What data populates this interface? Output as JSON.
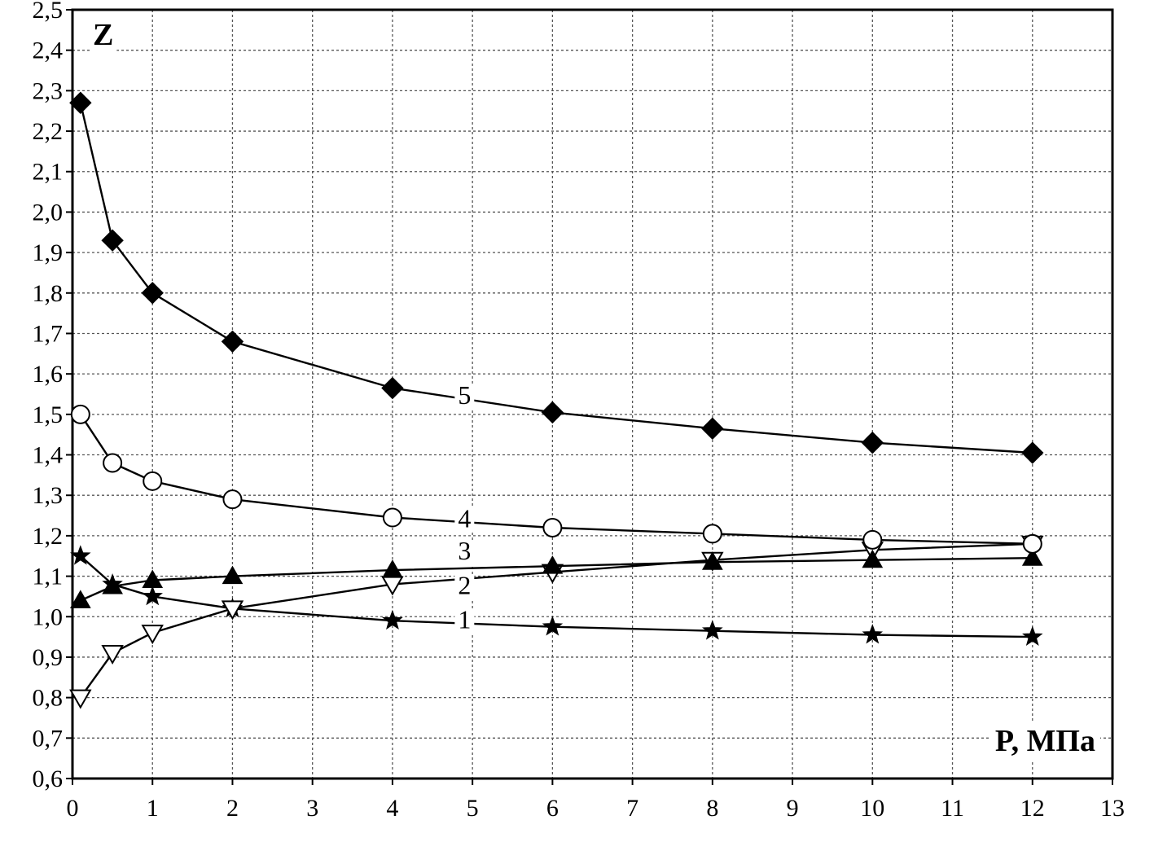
{
  "chart_data": {
    "type": "line",
    "ylabel": "Z",
    "xlabel": "P, МПа",
    "xlim": [
      0,
      13
    ],
    "ylim": [
      0.6,
      2.5
    ],
    "xticks": [
      "0",
      "1",
      "2",
      "3",
      "4",
      "5",
      "6",
      "7",
      "8",
      "9",
      "10",
      "11",
      "12",
      "13"
    ],
    "yticks": [
      "0,6",
      "0,7",
      "0,8",
      "0,9",
      "1,0",
      "1,1",
      "1,2",
      "1,3",
      "1,4",
      "1,5",
      "1,6",
      "1,7",
      "1,8",
      "1,9",
      "2,0",
      "2,1",
      "2,2",
      "2,3",
      "2,4",
      "2,5"
    ],
    "grid": true,
    "x": [
      0.1,
      0.5,
      1,
      2,
      4,
      6,
      8,
      10,
      12
    ],
    "series": [
      {
        "name": "1",
        "marker": "star",
        "values": [
          1.15,
          1.08,
          1.05,
          1.02,
          0.99,
          0.975,
          0.965,
          0.955,
          0.95
        ]
      },
      {
        "name": "2",
        "marker": "triangle-down-open",
        "values": [
          0.8,
          0.91,
          0.96,
          1.02,
          1.08,
          1.11,
          1.14,
          1.165,
          1.18
        ]
      },
      {
        "name": "3",
        "marker": "triangle-up-filled",
        "values": [
          1.04,
          1.075,
          1.09,
          1.1,
          1.115,
          1.125,
          1.135,
          1.14,
          1.145
        ]
      },
      {
        "name": "4",
        "marker": "circle-open",
        "values": [
          1.5,
          1.38,
          1.335,
          1.29,
          1.245,
          1.22,
          1.205,
          1.19,
          1.18
        ]
      },
      {
        "name": "5",
        "marker": "diamond-filled",
        "values": [
          2.27,
          1.93,
          1.8,
          1.68,
          1.565,
          1.505,
          1.465,
          1.43,
          1.405
        ]
      }
    ],
    "series_labels": [
      {
        "text": "1",
        "x": 4.9,
        "y": 0.975
      },
      {
        "text": "2",
        "x": 4.9,
        "y": 1.06
      },
      {
        "text": "3",
        "x": 4.9,
        "y": 1.145
      },
      {
        "text": "4",
        "x": 4.9,
        "y": 1.225
      },
      {
        "text": "5",
        "x": 4.9,
        "y": 1.53
      }
    ]
  }
}
